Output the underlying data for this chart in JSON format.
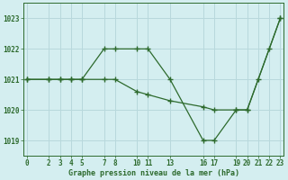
{
  "x_line1": [
    0,
    2,
    3,
    4,
    5,
    7,
    8,
    10,
    11,
    13,
    16,
    17,
    19,
    20,
    21,
    22,
    23
  ],
  "y_line1": [
    1021,
    1021,
    1021,
    1021,
    1021,
    1022,
    1022,
    1022,
    1022,
    1021,
    1019,
    1019,
    1020,
    1020,
    1021,
    1022,
    1023
  ],
  "x_line2": [
    0,
    2,
    3,
    4,
    5,
    7,
    8,
    10,
    11,
    13,
    16,
    17,
    19,
    20,
    23
  ],
  "y_line2": [
    1021,
    1021,
    1021,
    1021,
    1021,
    1021,
    1021,
    1020.6,
    1020.5,
    1020.3,
    1020.1,
    1020.0,
    1020.0,
    1020.0,
    1023
  ],
  "line_color": "#2d6a2d",
  "bg_color": "#d4eef0",
  "grid_color": "#b8d8dc",
  "xlabel": "Graphe pression niveau de la mer (hPa)",
  "ylim": [
    1018.5,
    1023.5
  ],
  "xlim": [
    -0.3,
    23.3
  ],
  "xticks": [
    0,
    2,
    3,
    4,
    5,
    7,
    8,
    10,
    11,
    13,
    16,
    17,
    19,
    20,
    21,
    22,
    23
  ],
  "yticks": [
    1019,
    1020,
    1021,
    1022,
    1023
  ],
  "xlabel_fontsize": 6.0,
  "tick_fontsize": 5.5
}
